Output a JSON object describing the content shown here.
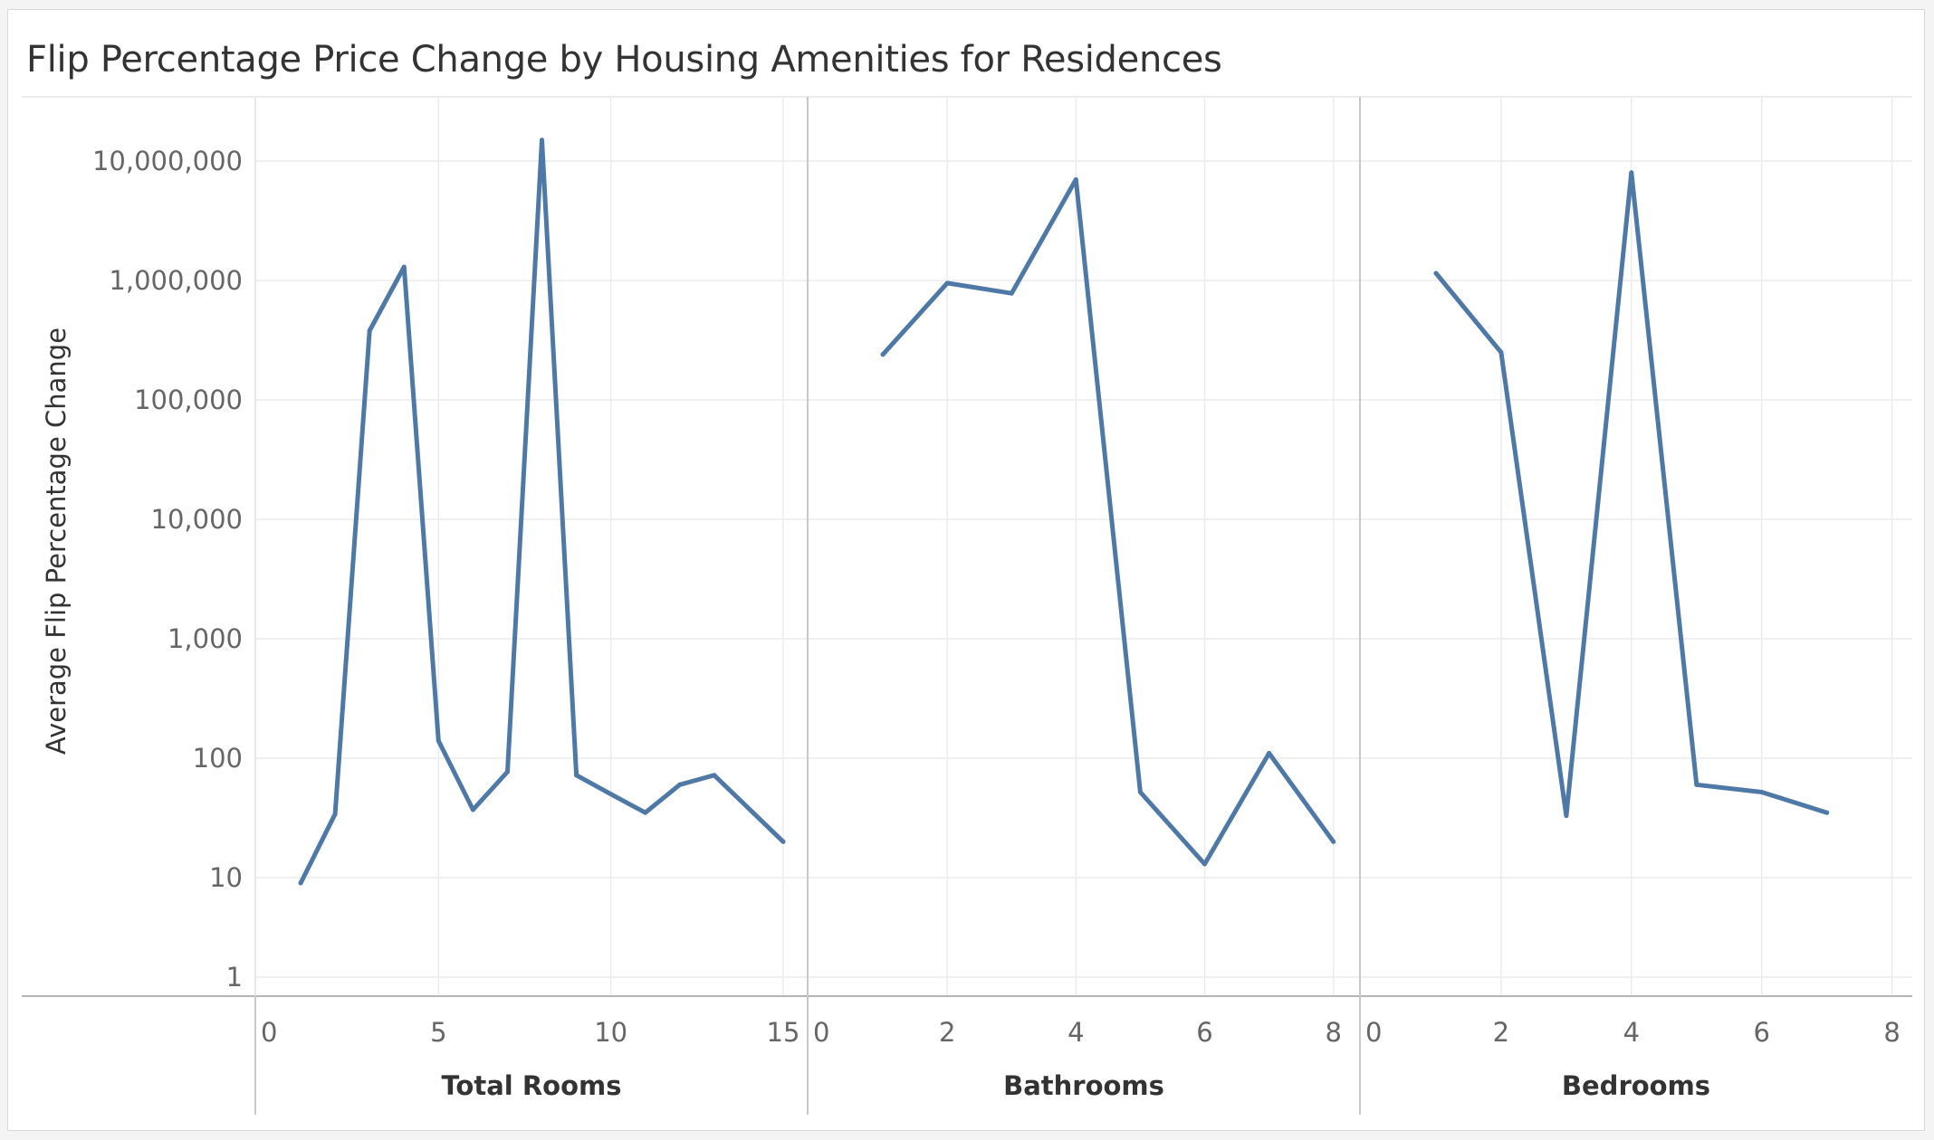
{
  "chart_data": {
    "type": "line",
    "title": "Flip Percentage Price Change by Housing Amenities for Residences",
    "ylabel": "Average Flip Percentage Change",
    "yscale": "log",
    "ylim": [
      1,
      30000000
    ],
    "yticks": [
      1,
      10,
      100,
      1000,
      10000,
      100000,
      1000000,
      10000000
    ],
    "ytick_labels": [
      "1",
      "10",
      "100",
      "1,000",
      "10,000",
      "100,000",
      "1,000,000",
      "10,000,000"
    ],
    "grid": true,
    "color": "#4e79a7",
    "panels": [
      {
        "xlabel": "Total Rooms",
        "xlim": [
          0,
          15.5
        ],
        "xticks": [
          0,
          5,
          10,
          15
        ],
        "x": [
          1,
          2,
          3,
          4,
          5,
          6,
          7,
          8,
          9,
          10,
          11,
          12,
          13,
          15
        ],
        "values": [
          9,
          34,
          380000,
          1300000,
          140,
          37,
          77,
          15000000,
          72,
          50,
          35,
          60,
          72,
          20
        ]
      },
      {
        "xlabel": "Bathrooms",
        "xlim": [
          0,
          8.3
        ],
        "xticks": [
          0,
          2,
          4,
          6,
          8
        ],
        "x": [
          1,
          2,
          3,
          4,
          5,
          6,
          7,
          8
        ],
        "values": [
          240000,
          950000,
          780000,
          7000000,
          52,
          13,
          110,
          20
        ]
      },
      {
        "xlabel": "Bedrooms",
        "xlim": [
          0,
          8.2
        ],
        "xticks": [
          0,
          2,
          4,
          6,
          8
        ],
        "x": [
          1,
          2,
          3,
          4,
          5,
          6,
          7
        ],
        "values": [
          1150000,
          250000,
          33,
          8000000,
          60,
          52,
          35
        ]
      }
    ]
  }
}
